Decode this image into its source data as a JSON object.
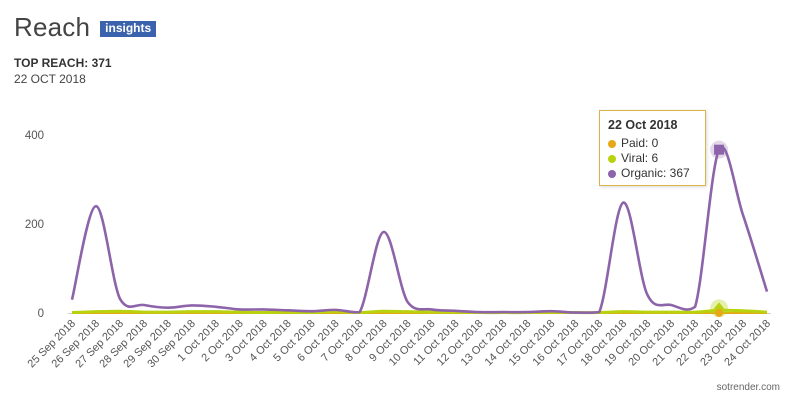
{
  "header": {
    "title": "Reach",
    "badge": "insights",
    "top_reach": "TOP REACH: 371",
    "top_date": "22 OCT 2018"
  },
  "tooltip": {
    "title": "22 Oct 2018",
    "rows": [
      {
        "label": "Paid: 0",
        "color": "#e6a817"
      },
      {
        "label": "Viral: 6",
        "color": "#b8d20f"
      },
      {
        "label": "Organic: 367",
        "color": "#8d63a9"
      }
    ]
  },
  "credit": "sotrender.com",
  "chart_data": {
    "type": "line",
    "categories": [
      "25 Sep 2018",
      "26 Sep 2018",
      "27 Sep 2018",
      "28 Sep 2018",
      "29 Sep 2018",
      "30 Sep 2018",
      "1 Oct 2018",
      "2 Oct 2018",
      "3 Oct 2018",
      "4 Oct 2018",
      "5 Oct 2018",
      "6 Oct 2018",
      "7 Oct 2018",
      "8 Oct 2018",
      "9 Oct 2018",
      "10 Oct 2018",
      "11 Oct 2018",
      "12 Oct 2018",
      "13 Oct 2018",
      "14 Oct 2018",
      "15 Oct 2018",
      "16 Oct 2018",
      "17 Oct 2018",
      "18 Oct 2018",
      "19 Oct 2018",
      "20 Oct 2018",
      "21 Oct 2018",
      "22 Oct 2018",
      "23 Oct 2018",
      "24 Oct 2018"
    ],
    "series": [
      {
        "name": "Paid",
        "color": "#e6a817",
        "values": [
          0,
          0,
          0,
          0,
          0,
          0,
          0,
          0,
          0,
          0,
          0,
          0,
          0,
          0,
          0,
          0,
          0,
          0,
          0,
          0,
          0,
          0,
          0,
          0,
          0,
          0,
          0,
          0,
          0,
          0
        ]
      },
      {
        "name": "Viral",
        "color": "#b8d20f",
        "values": [
          1,
          3,
          4,
          2,
          2,
          3,
          3,
          2,
          1,
          2,
          1,
          3,
          1,
          4,
          3,
          2,
          2,
          1,
          1,
          1,
          2,
          1,
          1,
          3,
          2,
          2,
          2,
          6,
          5,
          2
        ]
      },
      {
        "name": "Organic",
        "color": "#8d63a9",
        "values": [
          30,
          240,
          32,
          18,
          12,
          17,
          14,
          8,
          8,
          6,
          4,
          7,
          2,
          182,
          25,
          8,
          5,
          2,
          2,
          2,
          4,
          1,
          2,
          248,
          42,
          18,
          14,
          367,
          220,
          48
        ]
      }
    ],
    "ylim": [
      0,
      400
    ],
    "yticks": [
      0,
      200,
      400
    ],
    "highlight_index": 27,
    "grid": false
  }
}
